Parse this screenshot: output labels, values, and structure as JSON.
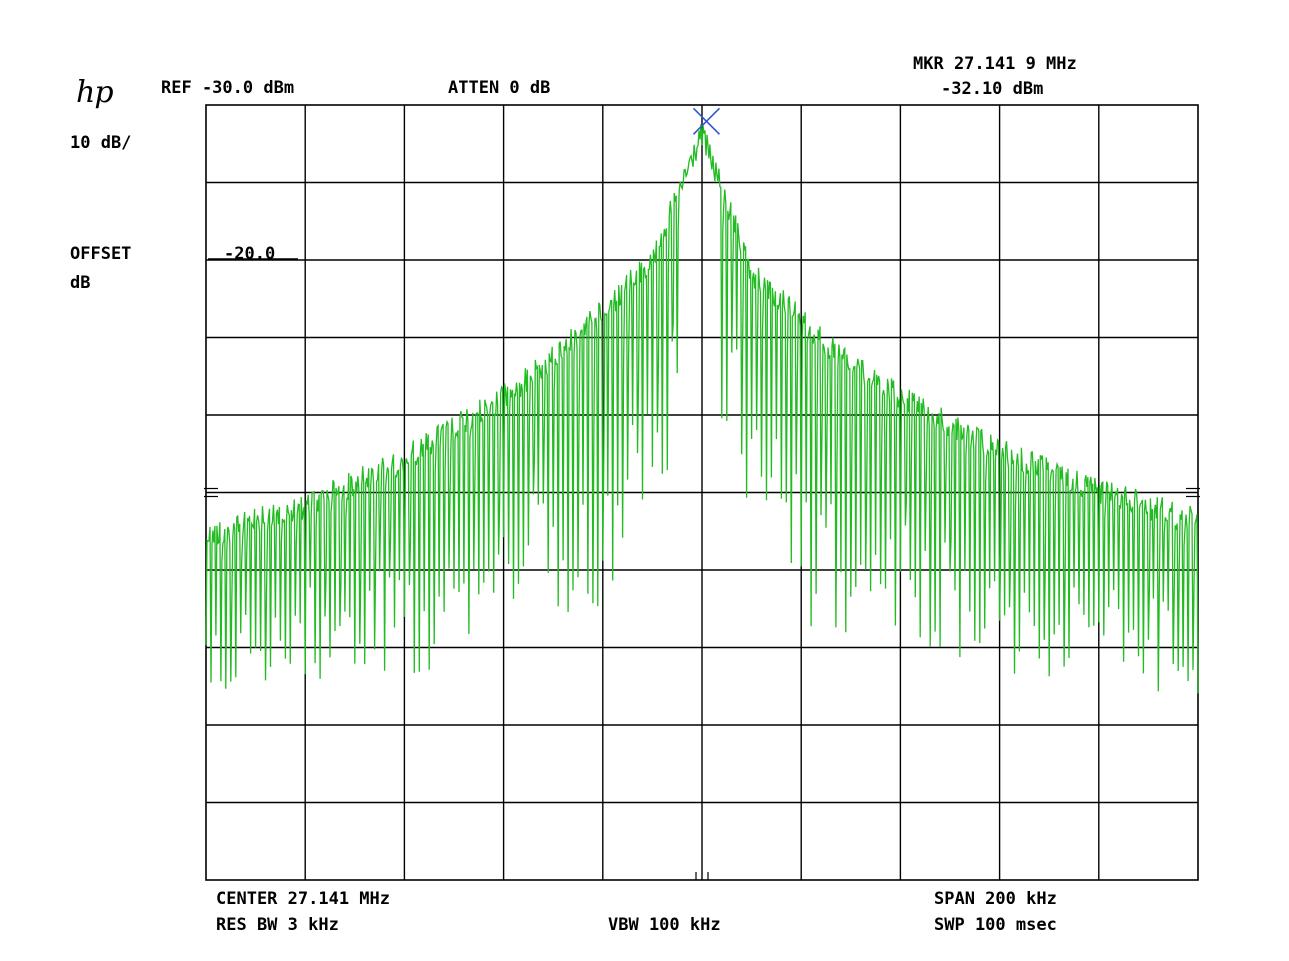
{
  "instrument": {
    "logo": "hp"
  },
  "header": {
    "ref_level": "REF -30.0 dBm",
    "attenuation": "ATTEN 0 dB",
    "marker_freq": "MKR 27.141 9 MHz",
    "marker_level": "-32.10 dBm"
  },
  "left_panel": {
    "scale": "10 dB/",
    "offset_label": "OFFSET",
    "offset_unit": "dB",
    "offset_value": "-20.0"
  },
  "footer": {
    "center": "CENTER 27.141 MHz",
    "res_bw": "RES BW 3 kHz",
    "vbw": "VBW 100 kHz",
    "span": "SPAN 200 kHz",
    "sweep": "SWP 100 msec"
  },
  "colors": {
    "trace": "#22bb22",
    "graticule": "#000000",
    "marker": "#3355cc",
    "background": "#ffffff"
  },
  "marker_icon": "x-marker-icon",
  "chart_data": {
    "type": "line",
    "x_unit": "MHz",
    "y_unit": "dBm",
    "center_mhz": 27.141,
    "span_khz": 200,
    "xlim": [
      27.041,
      27.241
    ],
    "ylim": [
      -130,
      -30
    ],
    "y_divisions": 10,
    "x_divisions": 10,
    "grid": true,
    "marker": {
      "x": 27.1419,
      "y": -32.1
    },
    "series": [
      {
        "envelope": {
          "x": [
            27.041,
            27.061,
            27.081,
            27.101,
            27.111,
            27.121,
            27.131,
            27.136,
            27.141,
            27.146,
            27.151,
            27.161,
            27.171,
            27.181,
            27.201,
            27.221,
            27.241
          ],
          "y": [
            -84,
            -80,
            -74,
            -66,
            -61,
            -55,
            -48,
            -40,
            -32,
            -41,
            -50,
            -56,
            -62,
            -66,
            -73,
            -78,
            -82
          ]
        },
        "dip_floor": {
          "x": [
            27.041,
            27.081,
            27.121,
            27.141,
            27.161,
            27.201,
            27.241
          ],
          "y": [
            -108,
            -104,
            -96,
            -70,
            -97,
            -104,
            -107
          ]
        }
      }
    ]
  }
}
